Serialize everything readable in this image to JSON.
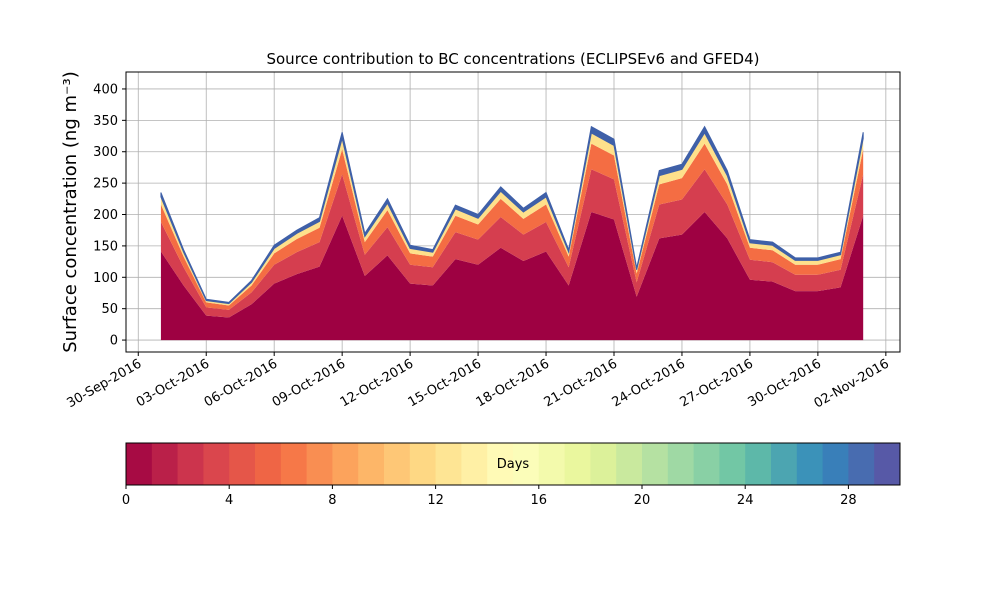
{
  "chart_data": {
    "type": "stacked_area",
    "title": "Source contribution to BC concentrations (ECLIPSEv6 and GFED4)",
    "y_label": "Surface concentration (ng m⁻³)",
    "x": [
      "2016-10-01",
      "2016-10-02",
      "2016-10-03",
      "2016-10-04",
      "2016-10-05",
      "2016-10-06",
      "2016-10-07",
      "2016-10-08",
      "2016-10-09",
      "2016-10-10",
      "2016-10-11",
      "2016-10-12",
      "2016-10-13",
      "2016-10-14",
      "2016-10-15",
      "2016-10-16",
      "2016-10-17",
      "2016-10-18",
      "2016-10-19",
      "2016-10-20",
      "2016-10-21",
      "2016-10-22",
      "2016-10-23",
      "2016-10-24",
      "2016-10-25",
      "2016-10-26",
      "2016-10-27",
      "2016-10-28",
      "2016-10-29",
      "2016-10-30",
      "2016-10-31",
      "2016-11-01"
    ],
    "series": [
      {
        "color": "#9e0142",
        "values": [
          141,
          87,
          39,
          36,
          57,
          90,
          105,
          117,
          198,
          102,
          135,
          90,
          87,
          129,
          120,
          147,
          126,
          141,
          87,
          204,
          192,
          69,
          162,
          168,
          204,
          162,
          96,
          93,
          78,
          78,
          84,
          198
        ]
      },
      {
        "color": "#d53e4f",
        "values": [
          47,
          29,
          13,
          12,
          19,
          30,
          35,
          39,
          66,
          34,
          45,
          30,
          29,
          43,
          40,
          49,
          42,
          47,
          29,
          68,
          64,
          23,
          54,
          56,
          68,
          54,
          32,
          31,
          26,
          26,
          28,
          66
        ]
      },
      {
        "color": "#f46d43",
        "values": [
          28,
          17,
          8,
          7,
          11,
          18,
          21,
          23,
          40,
          20,
          27,
          18,
          17,
          26,
          24,
          29,
          25,
          28,
          17,
          41,
          38,
          14,
          32,
          34,
          41,
          32,
          19,
          19,
          16,
          16,
          17,
          40
        ]
      },
      {
        "color": "#fee08b",
        "values": [
          12,
          7,
          3,
          3,
          5,
          8,
          9,
          10,
          17,
          9,
          11,
          8,
          7,
          11,
          10,
          12,
          11,
          12,
          7,
          17,
          16,
          6,
          14,
          14,
          17,
          14,
          8,
          8,
          7,
          7,
          7,
          17
        ]
      },
      {
        "color": "#3f60a8",
        "values": [
          7,
          4,
          2,
          2,
          3,
          5,
          5,
          6,
          10,
          5,
          7,
          5,
          4,
          6,
          6,
          7,
          6,
          7,
          4,
          10,
          10,
          3,
          8,
          8,
          10,
          8,
          5,
          5,
          4,
          4,
          4,
          10
        ]
      }
    ],
    "xlim": [
      "2016-09-29T11:00Z",
      "2016-11-02T15:00Z"
    ],
    "xticks": [
      {
        "value": "2016-09-30",
        "label": "30-Sep-2016"
      },
      {
        "value": "2016-10-03",
        "label": "03-Oct-2016"
      },
      {
        "value": "2016-10-06",
        "label": "06-Oct-2016"
      },
      {
        "value": "2016-10-09",
        "label": "09-Oct-2016"
      },
      {
        "value": "2016-10-12",
        "label": "12-Oct-2016"
      },
      {
        "value": "2016-10-15",
        "label": "15-Oct-2016"
      },
      {
        "value": "2016-10-18",
        "label": "18-Oct-2016"
      },
      {
        "value": "2016-10-21",
        "label": "21-Oct-2016"
      },
      {
        "value": "2016-10-24",
        "label": "24-Oct-2016"
      },
      {
        "value": "2016-10-27",
        "label": "27-Oct-2016"
      },
      {
        "value": "2016-10-30",
        "label": "30-Oct-2016"
      },
      {
        "value": "2016-11-02",
        "label": "02-Nov-2016"
      }
    ],
    "ylim": [
      -19,
      427
    ],
    "yticks": [
      0,
      50,
      100,
      150,
      200,
      250,
      300,
      350,
      400
    ],
    "grid": true,
    "colorbar": {
      "label": "Days",
      "lim": [
        0,
        30
      ],
      "ticks": [
        0,
        4,
        8,
        12,
        16,
        20,
        24,
        28
      ],
      "colormap": [
        "#9e0142",
        "#d53e4f",
        "#f46d43",
        "#fdae61",
        "#fee08b",
        "#ffffbf",
        "#e6f598",
        "#abdda4",
        "#66c2a5",
        "#3288bd",
        "#5e4fa2"
      ]
    }
  }
}
